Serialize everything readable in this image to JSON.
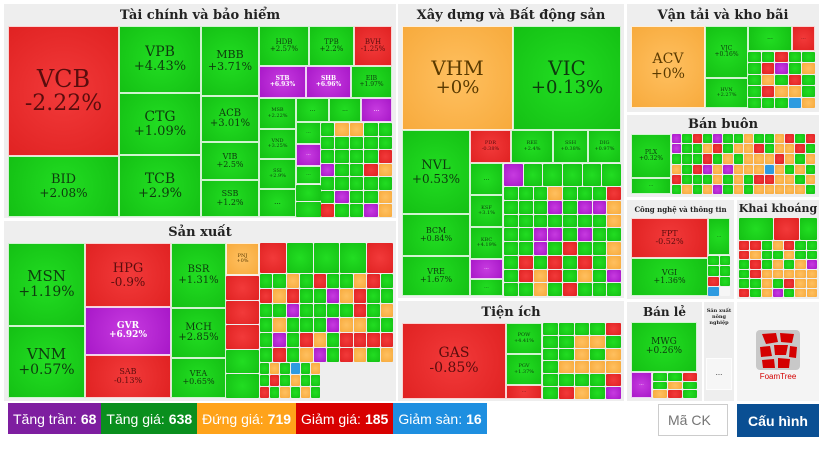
{
  "colors": {
    "ceiling": "#7e1ea0",
    "up": "#0a8f1e",
    "flat": "#ffa31a",
    "down": "#d80000",
    "floor": "#1e8fe0",
    "button": "#0a4f93"
  },
  "sectors": {
    "finance": {
      "title": "Tài chính và bảo hiểm",
      "tiles": [
        {
          "sym": "VCB",
          "chg": "-2.22%"
        },
        {
          "sym": "BID",
          "chg": "+2.08%"
        },
        {
          "sym": "VPB",
          "chg": "+4.43%"
        },
        {
          "sym": "CTG",
          "chg": "+1.09%"
        },
        {
          "sym": "TCB",
          "chg": "+2.9%"
        },
        {
          "sym": "MBB",
          "chg": "+3.71%"
        },
        {
          "sym": "ACB",
          "chg": "+3.01%"
        },
        {
          "sym": "VIB",
          "chg": "+2.5%"
        },
        {
          "sym": "SSB",
          "chg": "+1.2%"
        },
        {
          "sym": "HDB",
          "chg": "+2.57%"
        },
        {
          "sym": "TPB",
          "chg": "+2.2%"
        },
        {
          "sym": "BVH",
          "chg": "-1.25%"
        },
        {
          "sym": "STB",
          "chg": "+6.93%"
        },
        {
          "sym": "SHB",
          "chg": "+6.96%"
        },
        {
          "sym": "EIB",
          "chg": "+1.97%"
        },
        {
          "sym": "MSB",
          "chg": "+2.22%"
        },
        {
          "sym": "VND",
          "chg": "+3.25%"
        },
        {
          "sym": "SSI",
          "chg": "+2.9%"
        }
      ]
    },
    "manufacturing": {
      "title": "Sản xuất",
      "tiles": [
        {
          "sym": "MSN",
          "chg": "+1.19%"
        },
        {
          "sym": "VNM",
          "chg": "+0.57%"
        },
        {
          "sym": "HPG",
          "chg": "-0.9%"
        },
        {
          "sym": "GVR",
          "chg": "+6.92%"
        },
        {
          "sym": "SAB",
          "chg": "-0.13%"
        },
        {
          "sym": "BSR",
          "chg": "+1.31%"
        },
        {
          "sym": "MCH",
          "chg": "+2.85%"
        },
        {
          "sym": "VEA",
          "chg": "+0.65%"
        },
        {
          "sym": "PNJ",
          "chg": "+0%"
        }
      ]
    },
    "realestate": {
      "title": "Xây dựng và Bất động sản",
      "tiles": [
        {
          "sym": "VHM",
          "chg": "+0%"
        },
        {
          "sym": "VIC",
          "chg": "+0.13%"
        },
        {
          "sym": "NVL",
          "chg": "+0.53%"
        },
        {
          "sym": "BCM",
          "chg": "+0.84%"
        },
        {
          "sym": "VRE",
          "chg": "+1.67%"
        },
        {
          "sym": "PDR",
          "chg": "-0.38%"
        },
        {
          "sym": "REE",
          "chg": "+2.4%"
        },
        {
          "sym": "SSH",
          "chg": "+0.38%"
        },
        {
          "sym": "DIG",
          "chg": "+0.97%"
        },
        {
          "sym": "KSF",
          "chg": "+3.1%"
        },
        {
          "sym": "KBC",
          "chg": "+4.19%"
        }
      ]
    },
    "utilities": {
      "title": "Tiện ích",
      "tiles": [
        {
          "sym": "GAS",
          "chg": "-0.85%"
        },
        {
          "sym": "POW",
          "chg": "+4.41%"
        },
        {
          "sym": "PGV",
          "chg": "+1.37%"
        }
      ]
    },
    "transport": {
      "title": "Vận tải và kho bãi",
      "tiles": [
        {
          "sym": "ACV",
          "chg": "+0%"
        },
        {
          "sym": "VJC",
          "chg": "+0.16%"
        },
        {
          "sym": "HVN",
          "chg": "+2.27%"
        }
      ]
    },
    "wholesale": {
      "title": "Bán buôn",
      "tiles": [
        {
          "sym": "PLX",
          "chg": "+0.32%"
        }
      ]
    },
    "tech": {
      "title": "Công nghệ và thông tin",
      "tiles": [
        {
          "sym": "FPT",
          "chg": "-0.52%"
        },
        {
          "sym": "VGI",
          "chg": "+1.36%"
        }
      ]
    },
    "mining": {
      "title": "Khai khoáng"
    },
    "retail": {
      "title": "Bán lẻ",
      "tiles": [
        {
          "sym": "MWG",
          "chg": "+0.26%"
        }
      ]
    },
    "agri": {
      "title": "Sản xuất nông nghiệp"
    }
  },
  "more": "...",
  "logo": "FoamTree",
  "legend": [
    {
      "label": "Tăng trần:",
      "count": "68"
    },
    {
      "label": "Tăng giá:",
      "count": "638"
    },
    {
      "label": "Đứng giá:",
      "count": "719"
    },
    {
      "label": "Giảm giá:",
      "count": "185"
    },
    {
      "label": "Giảm sàn:",
      "count": "16"
    }
  ],
  "search": {
    "placeholder": "Mã CK"
  },
  "config_label": "Cấu hình"
}
